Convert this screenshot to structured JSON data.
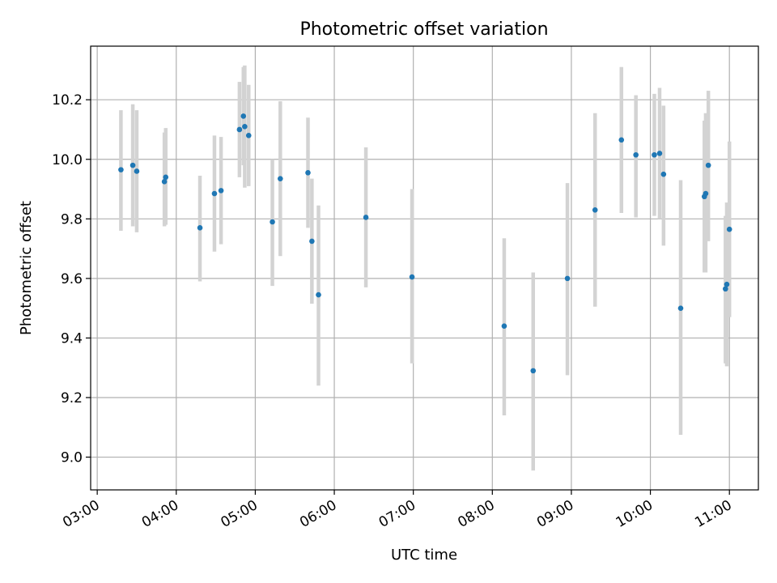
{
  "chart_data": {
    "type": "scatter",
    "title": "Photometric offset variation",
    "xlabel": "UTC time",
    "ylabel": "Photometric offset",
    "x_is_time": true,
    "xlim": [
      "02:55",
      "11:22"
    ],
    "ylim": [
      8.89,
      10.38
    ],
    "xticks": [
      "03:00",
      "04:00",
      "05:00",
      "06:00",
      "07:00",
      "08:00",
      "09:00",
      "10:00",
      "11:00"
    ],
    "yticks": [
      9.0,
      9.2,
      9.4,
      9.6,
      9.8,
      10.0,
      10.2
    ],
    "ytick_labels": [
      "9.0",
      "9.2",
      "9.4",
      "9.6",
      "9.8",
      "10.0",
      "10.2"
    ],
    "grid": true,
    "series": [
      {
        "marker_color": "#1f77b4",
        "errorbar_color": "#d3d3d3",
        "points": [
          {
            "t": "03:18",
            "y": 9.965,
            "lo": 9.76,
            "hi": 10.165
          },
          {
            "t": "03:27",
            "y": 9.98,
            "lo": 9.775,
            "hi": 10.185
          },
          {
            "t": "03:30",
            "y": 9.96,
            "lo": 9.755,
            "hi": 10.165
          },
          {
            "t": "03:51",
            "y": 9.925,
            "lo": 9.775,
            "hi": 10.09
          },
          {
            "t": "03:52",
            "y": 9.94,
            "lo": 9.78,
            "hi": 10.105
          },
          {
            "t": "04:18",
            "y": 9.77,
            "lo": 9.59,
            "hi": 9.945
          },
          {
            "t": "04:29",
            "y": 9.885,
            "lo": 9.69,
            "hi": 10.08
          },
          {
            "t": "04:34",
            "y": 9.895,
            "lo": 9.715,
            "hi": 10.075
          },
          {
            "t": "04:48",
            "y": 10.1,
            "lo": 9.94,
            "hi": 10.26
          },
          {
            "t": "04:51",
            "y": 10.145,
            "lo": 9.98,
            "hi": 10.31
          },
          {
            "t": "04:52",
            "y": 10.11,
            "lo": 9.905,
            "hi": 10.315
          },
          {
            "t": "04:55",
            "y": 10.08,
            "lo": 9.91,
            "hi": 10.25
          },
          {
            "t": "05:13",
            "y": 9.79,
            "lo": 9.575,
            "hi": 10.0
          },
          {
            "t": "05:19",
            "y": 9.935,
            "lo": 9.675,
            "hi": 10.195
          },
          {
            "t": "05:40",
            "y": 9.955,
            "lo": 9.77,
            "hi": 10.14
          },
          {
            "t": "05:43",
            "y": 9.725,
            "lo": 9.515,
            "hi": 9.935
          },
          {
            "t": "05:48",
            "y": 9.545,
            "lo": 9.24,
            "hi": 9.845
          },
          {
            "t": "06:24",
            "y": 9.805,
            "lo": 9.57,
            "hi": 10.04
          },
          {
            "t": "06:59",
            "y": 9.605,
            "lo": 9.315,
            "hi": 9.9
          },
          {
            "t": "08:09",
            "y": 9.44,
            "lo": 9.14,
            "hi": 9.735
          },
          {
            "t": "08:31",
            "y": 9.29,
            "lo": 8.955,
            "hi": 9.62
          },
          {
            "t": "08:57",
            "y": 9.6,
            "lo": 9.275,
            "hi": 9.92
          },
          {
            "t": "09:18",
            "y": 9.83,
            "lo": 9.505,
            "hi": 10.155
          },
          {
            "t": "09:38",
            "y": 10.065,
            "lo": 9.82,
            "hi": 10.31
          },
          {
            "t": "09:49",
            "y": 10.015,
            "lo": 9.805,
            "hi": 10.215
          },
          {
            "t": "10:03",
            "y": 10.015,
            "lo": 9.81,
            "hi": 10.22
          },
          {
            "t": "10:07",
            "y": 10.02,
            "lo": 9.8,
            "hi": 10.24
          },
          {
            "t": "10:10",
            "y": 9.95,
            "lo": 9.71,
            "hi": 10.18
          },
          {
            "t": "10:23",
            "y": 9.5,
            "lo": 9.075,
            "hi": 9.93
          },
          {
            "t": "10:41",
            "y": 9.875,
            "lo": 9.62,
            "hi": 10.13
          },
          {
            "t": "10:42",
            "y": 9.885,
            "lo": 9.62,
            "hi": 10.155
          },
          {
            "t": "10:44",
            "y": 9.98,
            "lo": 9.725,
            "hi": 10.23
          },
          {
            "t": "10:57",
            "y": 9.565,
            "lo": 9.315,
            "hi": 9.81
          },
          {
            "t": "10:58",
            "y": 9.58,
            "lo": 9.305,
            "hi": 9.855
          },
          {
            "t": "11:00",
            "y": 9.765,
            "lo": 9.47,
            "hi": 10.06
          }
        ]
      }
    ]
  }
}
